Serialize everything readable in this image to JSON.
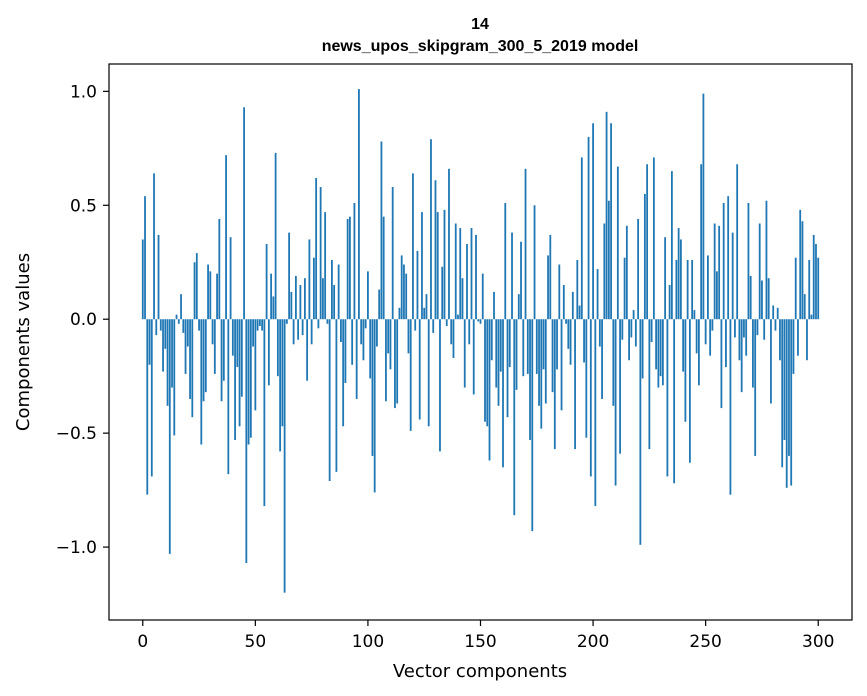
{
  "chart_data": {
    "type": "bar",
    "title_lines": [
      "14",
      "news_upos_skipgram_300_5_2019 model"
    ],
    "xlabel": "Vector components",
    "ylabel": "Components values",
    "xlim": [
      -15,
      315
    ],
    "ylim": [
      -1.32,
      1.12
    ],
    "xticks": [
      0,
      50,
      100,
      150,
      200,
      250,
      300
    ],
    "xtick_labels": [
      "0",
      "50",
      "100",
      "150",
      "200",
      "250",
      "300"
    ],
    "yticks": [
      -1.0,
      -0.5,
      0.0,
      0.5,
      1.0
    ],
    "ytick_labels": [
      "−1.0",
      "−0.5",
      "0.0",
      "0.5",
      "1.0"
    ],
    "bar_color": "#1f77b4",
    "grid": false,
    "x": "0..299 (component index)",
    "values": [
      0.35,
      0.54,
      -0.77,
      -0.2,
      -0.69,
      0.64,
      -0.07,
      0.37,
      -0.05,
      -0.23,
      -0.13,
      -0.38,
      -1.03,
      -0.3,
      -0.51,
      0.02,
      -0.02,
      0.11,
      -0.06,
      -0.24,
      -0.12,
      -0.35,
      -0.43,
      0.25,
      0.29,
      -0.05,
      -0.55,
      -0.36,
      -0.32,
      0.24,
      0.21,
      -0.11,
      -0.24,
      0.2,
      0.44,
      -0.36,
      -0.27,
      0.72,
      -0.68,
      0.36,
      -0.16,
      -0.53,
      -0.21,
      -0.47,
      -0.34,
      0.93,
      -1.07,
      -0.55,
      -0.52,
      -0.12,
      -0.4,
      -0.05,
      -0.03,
      -0.05,
      -0.82,
      0.33,
      -0.29,
      0.2,
      0.1,
      0.73,
      -0.25,
      -0.58,
      -0.47,
      -1.2,
      -0.02,
      0.38,
      0.12,
      -0.11,
      0.19,
      -0.09,
      0.15,
      -0.07,
      0.18,
      -0.27,
      0.35,
      -0.11,
      0.27,
      0.62,
      -0.04,
      0.58,
      0.18,
      0.47,
      -0.02,
      -0.71,
      0.26,
      0.15,
      -0.67,
      0.24,
      -0.1,
      -0.47,
      -0.28,
      0.44,
      0.45,
      -0.2,
      0.51,
      -0.35,
      1.01,
      -0.11,
      -0.18,
      -0.04,
      0.21,
      -0.26,
      -0.6,
      -0.76,
      -0.12,
      0.13,
      0.78,
      0.45,
      -0.36,
      -0.15,
      -0.22,
      0.58,
      -0.39,
      -0.37,
      0.05,
      0.28,
      0.24,
      0.2,
      -0.15,
      -0.49,
      0.64,
      -0.05,
      0.3,
      -0.44,
      0.47,
      0.05,
      0.11,
      -0.47,
      0.79,
      -0.06,
      0.61,
      0.47,
      -0.58,
      0.23,
      0.48,
      -0.03,
      0.66,
      -0.11,
      -0.17,
      0.42,
      0.02,
      0.4,
      0.18,
      -0.3,
      0.33,
      -0.11,
      0.4,
      -0.33,
      0.37,
      -0.01,
      -0.02,
      0.2,
      -0.45,
      -0.47,
      -0.62,
      -0.18,
      0.12,
      -0.3,
      -0.38,
      -0.23,
      -0.65,
      0.51,
      -0.43,
      -0.21,
      0.38,
      -0.86,
      -0.31,
      0.11,
      0.34,
      -0.25,
      0.66,
      -0.24,
      -0.53,
      -0.93,
      0.5,
      -0.24,
      -0.38,
      -0.48,
      -0.22,
      -0.37,
      0.28,
      0.37,
      -0.32,
      -0.57,
      -0.22,
      0.24,
      -0.4,
      0.15,
      -0.02,
      -0.13,
      -0.2,
      0.12,
      -0.57,
      0.26,
      0.06,
      0.71,
      -0.19,
      -0.52,
      0.8,
      -0.69,
      0.86,
      -0.82,
      0.22,
      -0.12,
      -0.35,
      0.42,
      0.91,
      0.52,
      0.86,
      -0.38,
      -0.73,
      0.67,
      -0.59,
      -0.09,
      0.27,
      0.41,
      -0.18,
      -0.08,
      0.04,
      -0.12,
      0.44,
      -0.99,
      -0.26,
      0.55,
      0.68,
      -0.57,
      -0.1,
      0.71,
      -0.22,
      -0.3,
      -0.25,
      -0.29,
      0.36,
      -0.69,
      0.15,
      0.65,
      -0.72,
      0.26,
      0.4,
      0.35,
      -0.23,
      -0.45,
      0.26,
      -0.63,
      0.26,
      0.04,
      -0.15,
      -0.29,
      0.68,
      0.99,
      -0.11,
      0.28,
      -0.16,
      -0.05,
      0.42,
      0.21,
      0.41,
      -0.39,
      0.51,
      -0.21,
      0.54,
      -0.77,
      0.38,
      -0.08,
      0.68,
      -0.18,
      -0.32,
      -0.08,
      -0.16,
      0.51,
      0.19,
      -0.3,
      -0.6,
      -0.07,
      0.42,
      0.17,
      -0.09,
      0.52,
      0.18,
      -0.37,
      0.06,
      -0.05,
      0.05,
      -0.18,
      -0.65,
      -0.53,
      -0.74,
      -0.6,
      -0.73,
      -0.24,
      0.27,
      -0.16,
      0.48,
      0.43,
      0.11,
      -0.18,
      0.26,
      0.02,
      0.37,
      0.33,
      0.27
    ]
  }
}
